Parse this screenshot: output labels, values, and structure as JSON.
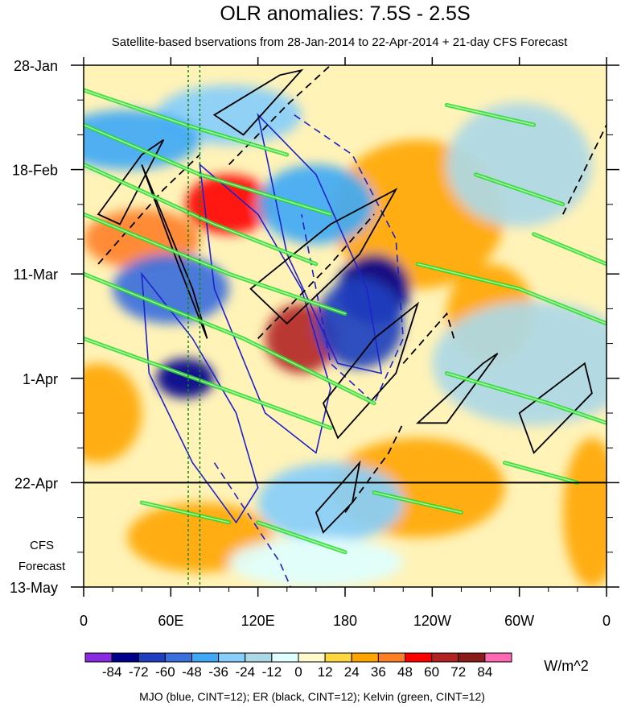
{
  "chart_data": {
    "type": "heatmap",
    "title": "OLR anomalies: 7.5S - 2.5S",
    "subtitle": "Satellite-based bservations from 28-Jan-2014 to 22-Apr-2014 + 21-day CFS Forecast",
    "forecast_label": [
      "CFS",
      "Forecast"
    ],
    "x_axis": {
      "ticks": [
        {
          "label": "0",
          "lon": 0
        },
        {
          "label": "60E",
          "lon": 60
        },
        {
          "label": "120E",
          "lon": 120
        },
        {
          "label": "180",
          "lon": 180
        },
        {
          "label": "120W",
          "lon": 240
        },
        {
          "label": "60W",
          "lon": 300
        },
        {
          "label": "0",
          "lon": 360
        }
      ],
      "range": [
        0,
        360
      ],
      "minor_step": 20
    },
    "y_axis": {
      "ticks": [
        {
          "label": "28-Jan",
          "day": 0
        },
        {
          "label": "18-Feb",
          "day": 21
        },
        {
          "label": "11-Mar",
          "day": 42
        },
        {
          "label": "1-Apr",
          "day": 63
        },
        {
          "label": "22-Apr",
          "day": 84
        },
        {
          "label": "13-May",
          "day": 105
        }
      ],
      "range": [
        0,
        105
      ],
      "minor_step": 7,
      "forecast_start_day": 84
    },
    "colorbar": {
      "levels": [
        "-84",
        "-72",
        "-60",
        "-48",
        "-36",
        "-24",
        "-12",
        "0",
        "12",
        "24",
        "36",
        "48",
        "60",
        "72",
        "84"
      ],
      "colors": [
        "#8a2be2",
        "#00008b",
        "#1f3fbf",
        "#3a6fdc",
        "#3fa9f5",
        "#87cefa",
        "#add8e6",
        "#e0ffff",
        "#fffacd",
        "#ffd740",
        "#ffa500",
        "#ff7f27",
        "#ff0000",
        "#b22222",
        "#8b1a1a",
        "#ff69b4"
      ],
      "unit": "W/m^2"
    },
    "footer": "MJO (blue, CINT=12); ER (black, CINT=12); Kelvin (green, CINT=12)",
    "contour_colors": {
      "mjo": "#1e22c8",
      "er": "#000000",
      "kelvin": "#22dd22",
      "marker": "#118811"
    },
    "reference_lines_lon": [
      72,
      80
    ],
    "mjo_contours": [
      {
        "style": "solid",
        "points": [
          [
            40,
            42
          ],
          [
            75,
            55
          ],
          [
            105,
            70
          ],
          [
            120,
            85
          ],
          [
            105,
            92
          ],
          [
            75,
            80
          ],
          [
            45,
            62
          ]
        ]
      },
      {
        "style": "solid",
        "points": [
          [
            80,
            20
          ],
          [
            120,
            30
          ],
          [
            150,
            45
          ],
          [
            170,
            65
          ],
          [
            160,
            78
          ],
          [
            125,
            70
          ],
          [
            90,
            45
          ]
        ]
      },
      {
        "style": "solid",
        "points": [
          [
            120,
            10
          ],
          [
            160,
            22
          ],
          [
            195,
            45
          ],
          [
            205,
            62
          ],
          [
            175,
            60
          ],
          [
            140,
            38
          ]
        ]
      },
      {
        "style": "dashed",
        "points": [
          [
            145,
            10
          ],
          [
            185,
            18
          ],
          [
            215,
            35
          ],
          [
            220,
            55
          ],
          [
            200,
            68
          ],
          [
            170,
            60
          ],
          [
            150,
            30
          ]
        ]
      },
      {
        "style": "dashed",
        "points": [
          [
            90,
            80
          ],
          [
            135,
            100
          ],
          [
            150,
            110
          ]
        ]
      }
    ],
    "er_contours": [
      {
        "style": "solid",
        "points": [
          [
            40,
            20
          ],
          [
            75,
            45
          ],
          [
            85,
            55
          ],
          [
            65,
            40
          ]
        ]
      },
      {
        "style": "solid",
        "points": [
          [
            90,
            10
          ],
          [
            135,
            2
          ],
          [
            150,
            1
          ],
          [
            110,
            14
          ]
        ]
      },
      {
        "style": "solid",
        "points": [
          [
            115,
            45
          ],
          [
            170,
            32
          ],
          [
            215,
            25
          ],
          [
            190,
            38
          ],
          [
            140,
            52
          ]
        ]
      },
      {
        "style": "solid",
        "points": [
          [
            165,
            68
          ],
          [
            200,
            55
          ],
          [
            230,
            48
          ],
          [
            215,
            62
          ],
          [
            175,
            75
          ]
        ]
      },
      {
        "style": "solid",
        "points": [
          [
            230,
            72
          ],
          [
            275,
            60
          ],
          [
            285,
            58
          ],
          [
            250,
            72
          ]
        ]
      },
      {
        "style": "solid",
        "points": [
          [
            300,
            70
          ],
          [
            345,
            60
          ],
          [
            350,
            66
          ],
          [
            310,
            78
          ]
        ]
      },
      {
        "style": "solid",
        "points": [
          [
            10,
            30
          ],
          [
            40,
            18
          ],
          [
            55,
            15
          ],
          [
            25,
            32
          ]
        ]
      },
      {
        "style": "solid",
        "points": [
          [
            160,
            90
          ],
          [
            190,
            80
          ],
          [
            185,
            88
          ],
          [
            165,
            94
          ]
        ]
      },
      {
        "style": "dashed",
        "points": [
          [
            10,
            40
          ],
          [
            55,
            25
          ],
          [
            80,
            18
          ]
        ]
      },
      {
        "style": "dashed",
        "points": [
          [
            120,
            55
          ],
          [
            170,
            40
          ],
          [
            200,
            30
          ]
        ]
      },
      {
        "style": "dashed",
        "points": [
          [
            180,
            90
          ],
          [
            210,
            78
          ],
          [
            220,
            72
          ]
        ]
      },
      {
        "style": "dashed",
        "points": [
          [
            220,
            60
          ],
          [
            250,
            50
          ],
          [
            255,
            55
          ]
        ]
      },
      {
        "style": "dashed",
        "points": [
          [
            330,
            30
          ],
          [
            350,
            18
          ],
          [
            360,
            12
          ]
        ]
      },
      {
        "style": "dashed",
        "points": [
          [
            100,
            20
          ],
          [
            140,
            8
          ],
          [
            170,
            0
          ]
        ]
      }
    ],
    "kelvin_bands": [
      {
        "points": [
          [
            0,
            5
          ],
          [
            70,
            12
          ],
          [
            140,
            18
          ]
        ]
      },
      {
        "points": [
          [
            0,
            12
          ],
          [
            80,
            22
          ],
          [
            170,
            30
          ]
        ]
      },
      {
        "points": [
          [
            0,
            20
          ],
          [
            90,
            32
          ],
          [
            160,
            40
          ]
        ]
      },
      {
        "points": [
          [
            0,
            30
          ],
          [
            100,
            42
          ],
          [
            180,
            50
          ]
        ]
      },
      {
        "points": [
          [
            0,
            42
          ],
          [
            110,
            55
          ],
          [
            200,
            68
          ]
        ]
      },
      {
        "points": [
          [
            0,
            55
          ],
          [
            95,
            65
          ],
          [
            170,
            73
          ]
        ]
      },
      {
        "points": [
          [
            40,
            88
          ],
          [
            100,
            92
          ]
        ]
      },
      {
        "points": [
          [
            120,
            92
          ],
          [
            180,
            98
          ]
        ]
      },
      {
        "points": [
          [
            230,
            40
          ],
          [
            300,
            45
          ],
          [
            360,
            52
          ]
        ]
      },
      {
        "points": [
          [
            250,
            8
          ],
          [
            310,
            12
          ]
        ]
      },
      {
        "points": [
          [
            270,
            22
          ],
          [
            330,
            28
          ]
        ]
      },
      {
        "points": [
          [
            250,
            62
          ],
          [
            320,
            68
          ],
          [
            360,
            72
          ]
        ]
      },
      {
        "points": [
          [
            200,
            86
          ],
          [
            260,
            90
          ]
        ]
      },
      {
        "points": [
          [
            290,
            80
          ],
          [
            340,
            84
          ]
        ]
      },
      {
        "points": [
          [
            310,
            34
          ],
          [
            360,
            40
          ]
        ]
      }
    ],
    "wet_anomalies": [
      {
        "lon": 200,
        "day": 45,
        "w": 25,
        "h": 14,
        "value": -84
      },
      {
        "lon": 190,
        "day": 52,
        "w": 30,
        "h": 18,
        "value": -72
      },
      {
        "lon": 70,
        "day": 63,
        "w": 20,
        "h": 8,
        "value": -84
      },
      {
        "lon": 60,
        "day": 45,
        "w": 40,
        "h": 14,
        "value": -60
      },
      {
        "lon": 160,
        "day": 28,
        "w": 40,
        "h": 16,
        "value": -48
      },
      {
        "lon": 100,
        "day": 10,
        "w": 50,
        "h": 12,
        "value": -36
      },
      {
        "lon": 30,
        "day": 15,
        "w": 50,
        "h": 12,
        "value": -48
      },
      {
        "lon": 170,
        "day": 88,
        "w": 50,
        "h": 16,
        "value": -36
      },
      {
        "lon": 300,
        "day": 20,
        "w": 50,
        "h": 25,
        "value": -24
      },
      {
        "lon": 310,
        "day": 60,
        "w": 70,
        "h": 25,
        "value": -24
      },
      {
        "lon": 160,
        "day": 100,
        "w": 60,
        "h": 10,
        "value": -12
      }
    ],
    "dry_anomalies": [
      {
        "lon": 100,
        "day": 28,
        "w": 30,
        "h": 12,
        "value": 48
      },
      {
        "lon": 150,
        "day": 55,
        "w": 25,
        "h": 14,
        "value": 60
      },
      {
        "lon": 230,
        "day": 30,
        "w": 60,
        "h": 30,
        "value": 24
      },
      {
        "lon": 230,
        "day": 85,
        "w": 60,
        "h": 20,
        "value": 24
      },
      {
        "lon": 80,
        "day": 95,
        "w": 50,
        "h": 14,
        "value": 24
      },
      {
        "lon": 10,
        "day": 70,
        "w": 30,
        "h": 20,
        "value": 24
      },
      {
        "lon": 280,
        "day": 50,
        "w": 30,
        "h": 20,
        "value": 24
      },
      {
        "lon": 350,
        "day": 90,
        "w": 20,
        "h": 30,
        "value": 24
      },
      {
        "lon": 40,
        "day": 35,
        "w": 40,
        "h": 12,
        "value": 36
      }
    ]
  }
}
